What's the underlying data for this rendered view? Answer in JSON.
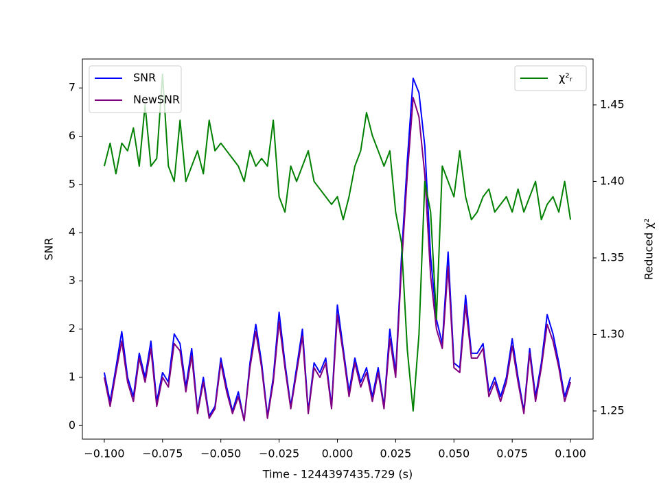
{
  "chart_data": {
    "type": "line",
    "xlabel": "Time - 1244397435.729 (s)",
    "ylabel": "SNR",
    "y2label": "Reduced χ²",
    "xlim": [
      -0.1094,
      0.1097
    ],
    "ylim": [
      -0.28,
      7.6
    ],
    "y2lim": [
      1.2316,
      1.48
    ],
    "xticks": [
      {
        "value": -0.1,
        "label": "−0.100"
      },
      {
        "value": -0.075,
        "label": "−0.075"
      },
      {
        "value": -0.05,
        "label": "−0.050"
      },
      {
        "value": -0.025,
        "label": "−0.025"
      },
      {
        "value": 0,
        "label": "0.000"
      },
      {
        "value": 0.025,
        "label": "0.025"
      },
      {
        "value": 0.05,
        "label": "0.050"
      },
      {
        "value": 0.075,
        "label": "0.075"
      },
      {
        "value": 0.1,
        "label": "0.100"
      }
    ],
    "yticks": [
      0,
      1,
      2,
      3,
      4,
      5,
      6,
      7
    ],
    "y2ticks": [
      1.25,
      {
        "value": 1.3,
        "label": "1.30"
      },
      1.35,
      {
        "value": 1.4,
        "label": "1.40"
      },
      1.45
    ],
    "legend": "upper left",
    "legend2": "upper right",
    "x": [
      -0.1,
      -0.0975,
      -0.095,
      -0.0925,
      -0.09,
      -0.0875,
      -0.085,
      -0.0825,
      -0.08,
      -0.0775,
      -0.075,
      -0.0725,
      -0.07,
      -0.0675,
      -0.065,
      -0.0625,
      -0.06,
      -0.0575,
      -0.055,
      -0.0525,
      -0.05,
      -0.0475,
      -0.045,
      -0.0425,
      -0.04,
      -0.0375,
      -0.035,
      -0.0325,
      -0.03,
      -0.0275,
      -0.025,
      -0.0225,
      -0.02,
      -0.0175,
      -0.015,
      -0.0125,
      -0.01,
      -0.0075,
      -0.005,
      -0.0025,
      0,
      0.0025,
      0.005,
      0.0075,
      0.01,
      0.0125,
      0.015,
      0.0175,
      0.02,
      0.0225,
      0.025,
      0.0275,
      0.03,
      0.0325,
      0.035,
      0.0375,
      0.04,
      0.0425,
      0.045,
      0.0475,
      0.05,
      0.0525,
      0.055,
      0.0575,
      0.06,
      0.0625,
      0.065,
      0.0675,
      0.07,
      0.0725,
      0.075,
      0.0775,
      0.08,
      0.0825,
      0.085,
      0.0875,
      0.09,
      0.0925,
      0.095,
      0.0975,
      0.1
    ],
    "series": [
      {
        "name": "SNR",
        "color": "#0000ff",
        "values": [
          1.1,
          0.5,
          1.2,
          1.95,
          1.0,
          0.6,
          1.5,
          1.0,
          1.75,
          0.5,
          1.1,
          0.9,
          1.9,
          1.7,
          0.8,
          1.6,
          0.3,
          1.0,
          0.2,
          0.4,
          1.4,
          0.8,
          0.3,
          0.7,
          0.1,
          1.3,
          2.1,
          1.3,
          0.2,
          1.0,
          2.35,
          1.3,
          0.4,
          1.2,
          2.0,
          0.3,
          1.3,
          1.1,
          1.4,
          0.4,
          2.5,
          1.6,
          0.7,
          1.4,
          0.9,
          1.2,
          0.6,
          1.2,
          0.4,
          2.0,
          1.1,
          3.5,
          5.5,
          7.2,
          6.9,
          5.8,
          3.5,
          2.2,
          1.7,
          3.6,
          1.3,
          1.2,
          2.7,
          1.5,
          1.5,
          1.7,
          0.7,
          1.0,
          0.6,
          1.0,
          1.8,
          1.0,
          0.3,
          1.6,
          0.6,
          1.3,
          2.3,
          1.9,
          1.3,
          0.6,
          1.0
        ]
      },
      {
        "name": "NewSNR",
        "color": "#800080",
        "values": [
          1.0,
          0.4,
          1.1,
          1.75,
          0.9,
          0.5,
          1.4,
          0.9,
          1.6,
          0.4,
          1.0,
          0.8,
          1.7,
          1.55,
          0.7,
          1.45,
          0.25,
          0.9,
          0.15,
          0.35,
          1.3,
          0.7,
          0.25,
          0.6,
          0.1,
          1.2,
          1.95,
          1.2,
          0.15,
          0.9,
          2.15,
          1.2,
          0.35,
          1.1,
          1.85,
          0.25,
          1.2,
          1.0,
          1.3,
          0.35,
          2.3,
          1.5,
          0.6,
          1.3,
          0.8,
          1.1,
          0.5,
          1.1,
          0.35,
          1.8,
          1.0,
          3.3,
          5.2,
          6.8,
          6.4,
          5.2,
          3.1,
          2.0,
          1.6,
          3.3,
          1.2,
          1.1,
          2.5,
          1.4,
          1.4,
          1.6,
          0.6,
          0.9,
          0.5,
          0.9,
          1.65,
          0.9,
          0.25,
          1.5,
          0.5,
          1.2,
          2.1,
          1.75,
          1.2,
          0.5,
          0.9
        ]
      },
      {
        "name": "χ²ᵣ",
        "color": "#008000",
        "axis": "y2",
        "values": [
          1.41,
          1.425,
          1.405,
          1.425,
          1.42,
          1.435,
          1.41,
          1.45,
          1.41,
          1.415,
          1.47,
          1.41,
          1.4,
          1.44,
          1.4,
          1.41,
          1.42,
          1.405,
          1.44,
          1.42,
          1.425,
          1.42,
          1.415,
          1.41,
          1.4,
          1.42,
          1.41,
          1.415,
          1.41,
          1.44,
          1.39,
          1.38,
          1.41,
          1.4,
          1.41,
          1.42,
          1.4,
          1.395,
          1.39,
          1.385,
          1.39,
          1.375,
          1.39,
          1.41,
          1.42,
          1.445,
          1.43,
          1.42,
          1.41,
          1.42,
          1.38,
          1.36,
          1.29,
          1.25,
          1.3,
          1.4,
          1.38,
          1.31,
          1.41,
          1.4,
          1.39,
          1.42,
          1.39,
          1.375,
          1.38,
          1.39,
          1.395,
          1.38,
          1.385,
          1.39,
          1.38,
          1.395,
          1.38,
          1.39,
          1.4,
          1.375,
          1.385,
          1.39,
          1.38,
          1.4,
          1.375
        ]
      }
    ]
  }
}
